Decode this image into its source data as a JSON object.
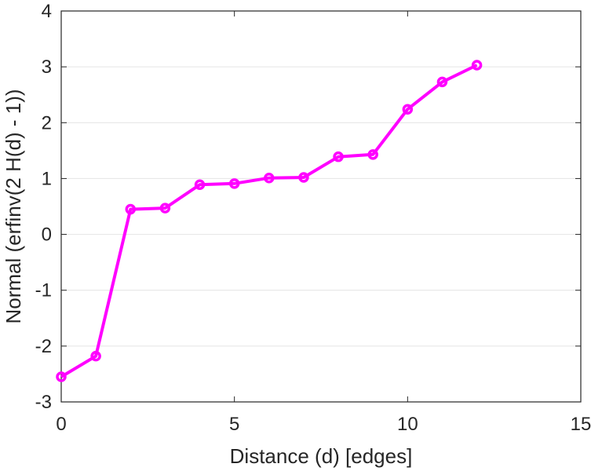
{
  "chart_data": {
    "type": "line",
    "title": "",
    "xlabel": "Distance (d) [edges]",
    "ylabel": "Normal (erfinv(2 H(d) - 1))",
    "xlim": [
      0,
      15
    ],
    "ylim": [
      -3,
      4
    ],
    "xticks": [
      "0",
      "5",
      "10",
      "15"
    ],
    "yticks": [
      "-3",
      "-2",
      "-1",
      "0",
      "1",
      "2",
      "3",
      "4"
    ],
    "grid": "horizontal",
    "series": [
      {
        "color": "#ff00ff",
        "marker": "circle",
        "x": [
          0,
          1,
          2,
          3,
          4,
          5,
          6,
          7,
          8,
          9,
          10,
          11,
          12
        ],
        "y": [
          -2.55,
          -2.18,
          0.45,
          0.47,
          0.89,
          0.91,
          1.01,
          1.02,
          1.39,
          1.43,
          2.24,
          2.73,
          3.03
        ]
      }
    ]
  }
}
